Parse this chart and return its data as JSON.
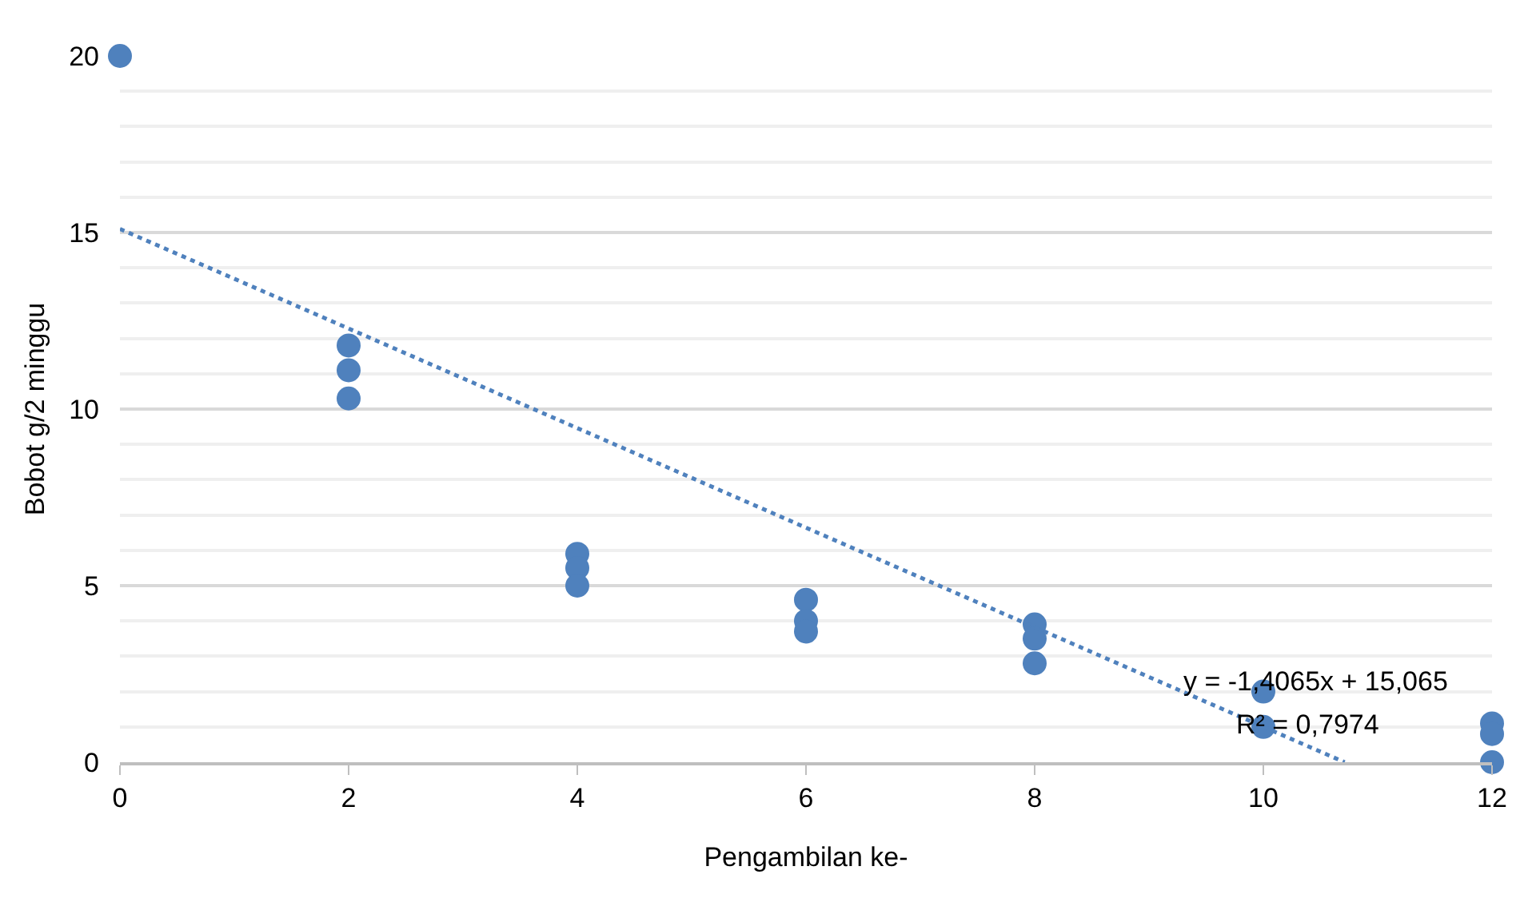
{
  "chart_data": {
    "type": "scatter",
    "xlabel": "Pengambilan ke-",
    "ylabel": "Bobot g/2 minggu",
    "xlim": [
      0,
      12
    ],
    "xticks": [
      0,
      2,
      4,
      6,
      8,
      10,
      12
    ],
    "ylim": [
      0,
      20
    ],
    "yticks": [
      0,
      5,
      10,
      15,
      20
    ],
    "grid": "y",
    "marker": "circle",
    "series": [
      {
        "color": "#4f81bd",
        "x": [
          0,
          2,
          2,
          2,
          4,
          4,
          4,
          6,
          6,
          6,
          8,
          8,
          8,
          10,
          10,
          12,
          12,
          12
        ],
        "values": [
          20,
          11.8,
          11.1,
          10.3,
          5.9,
          5.5,
          5.0,
          4.6,
          4.0,
          3.7,
          3.9,
          3.5,
          2.8,
          2.0,
          1.0,
          1.1,
          0.8,
          0
        ]
      },
      {
        "type": "line",
        "line_style": "dotted",
        "marker": "none",
        "color": "#4f81bd",
        "x": [
          0,
          10.711
        ],
        "values": [
          15.1,
          0
        ]
      }
    ],
    "annotations": [
      "y = -1,4065x + 15,065",
      "R² = 0,7974"
    ]
  }
}
